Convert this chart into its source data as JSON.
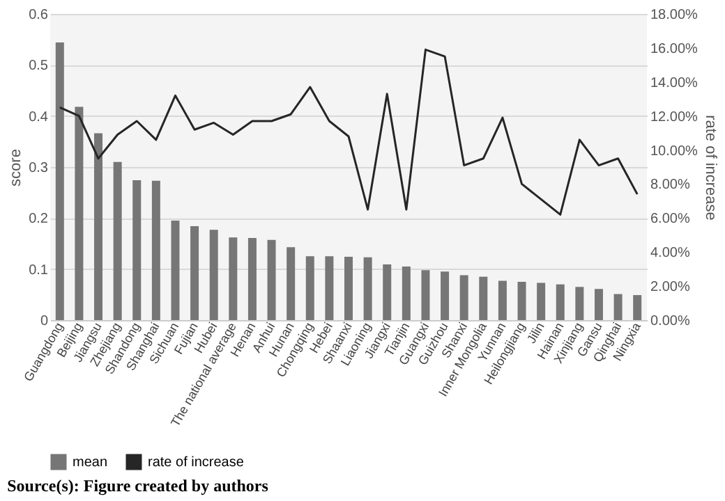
{
  "chart_data": {
    "type": "bar",
    "categories": [
      "Guangdong",
      "Beijing",
      "Jiangsu",
      "Zhejiang",
      "Shandong",
      "Shanghai",
      "Sichuan",
      "Fujian",
      "Hubei",
      "The national average",
      "Henan",
      "Anhui",
      "Hunan",
      "Chongqing",
      "Hebei",
      "Shaanxi",
      "Liaoning",
      "Jiangxi",
      "Tianjin",
      "Guangxi",
      "Guizhou",
      "Shanxi",
      "Inner Mongolia",
      "Yunnan",
      "Heilongjiang",
      "Jilin",
      "Hainan",
      "Xinjiang",
      "Gansu",
      "Qinghai",
      "Ningxia"
    ],
    "series": [
      {
        "name": "mean",
        "color": "#767676",
        "values": [
          0.544,
          0.418,
          0.366,
          0.31,
          0.274,
          0.273,
          0.195,
          0.184,
          0.177,
          0.162,
          0.161,
          0.157,
          0.143,
          0.125,
          0.125,
          0.124,
          0.123,
          0.109,
          0.105,
          0.098,
          0.095,
          0.088,
          0.085,
          0.077,
          0.075,
          0.073,
          0.07,
          0.065,
          0.061,
          0.051,
          0.049
        ]
      },
      {
        "name": "rate of increase",
        "type": "line",
        "axis": "y2",
        "color": "#262626",
        "values": [
          12.5,
          12.0,
          9.5,
          10.9,
          11.7,
          10.6,
          13.2,
          11.2,
          11.6,
          10.9,
          11.7,
          11.7,
          12.1,
          13.7,
          11.7,
          10.8,
          6.5,
          13.3,
          6.5,
          15.9,
          15.5,
          9.1,
          9.5,
          11.9,
          8.0,
          7.1,
          6.2,
          10.6,
          9.1,
          9.5,
          7.4
        ]
      }
    ],
    "ylabel": "score",
    "y2label": "rate of increase",
    "ylim": [
      0,
      0.6
    ],
    "yticks": [
      0,
      0.1,
      0.2,
      0.3,
      0.4,
      0.5,
      0.6
    ],
    "y2lim": [
      0,
      18
    ],
    "y2ticks": [
      {
        "value": 0,
        "label": "0.00%"
      },
      {
        "value": 2,
        "label": "2.00%"
      },
      {
        "value": 4,
        "label": "4.00%"
      },
      {
        "value": 6,
        "label": "6.00%"
      },
      {
        "value": 8,
        "label": "8.00%"
      },
      {
        "value": 10,
        "label": "10.00%"
      },
      {
        "value": 12,
        "label": "12.00%"
      },
      {
        "value": 14,
        "label": "14.00%"
      },
      {
        "value": 16,
        "label": "16.00%"
      },
      {
        "value": 18,
        "label": "18.00%"
      }
    ],
    "grid": "y",
    "legend": "bottom",
    "annotations": [
      "Source(s): Figure created by authors"
    ]
  }
}
